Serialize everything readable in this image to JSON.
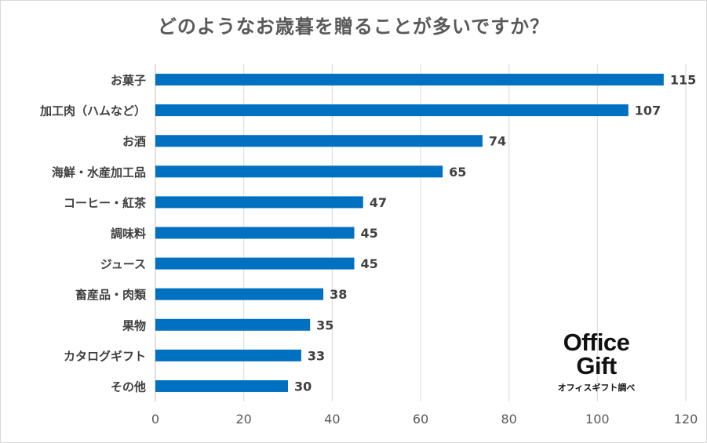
{
  "chart_data": {
    "type": "bar",
    "orientation": "horizontal",
    "title": "どのようなお歳暮を贈ることが多いですか？",
    "categories": [
      "お菓子",
      "加工肉（ハムなど）",
      "お酒",
      "海鮮・水産加工品",
      "コーヒー・紅茶",
      "調味料",
      "ジュース",
      "畜産品・肉類",
      "果物",
      "カタログギフト",
      "その他"
    ],
    "values": [
      115,
      107,
      74,
      65,
      47,
      45,
      45,
      38,
      35,
      33,
      30
    ],
    "xlim": [
      0,
      120
    ],
    "xticks": [
      0,
      20,
      40,
      60,
      80,
      100,
      120
    ],
    "grid": true,
    "bar_color": "#0070c0",
    "xlabel": "",
    "ylabel": ""
  },
  "watermark": {
    "line1": "Office",
    "line2": "Gift",
    "caption": "オフィスギフト調べ"
  }
}
